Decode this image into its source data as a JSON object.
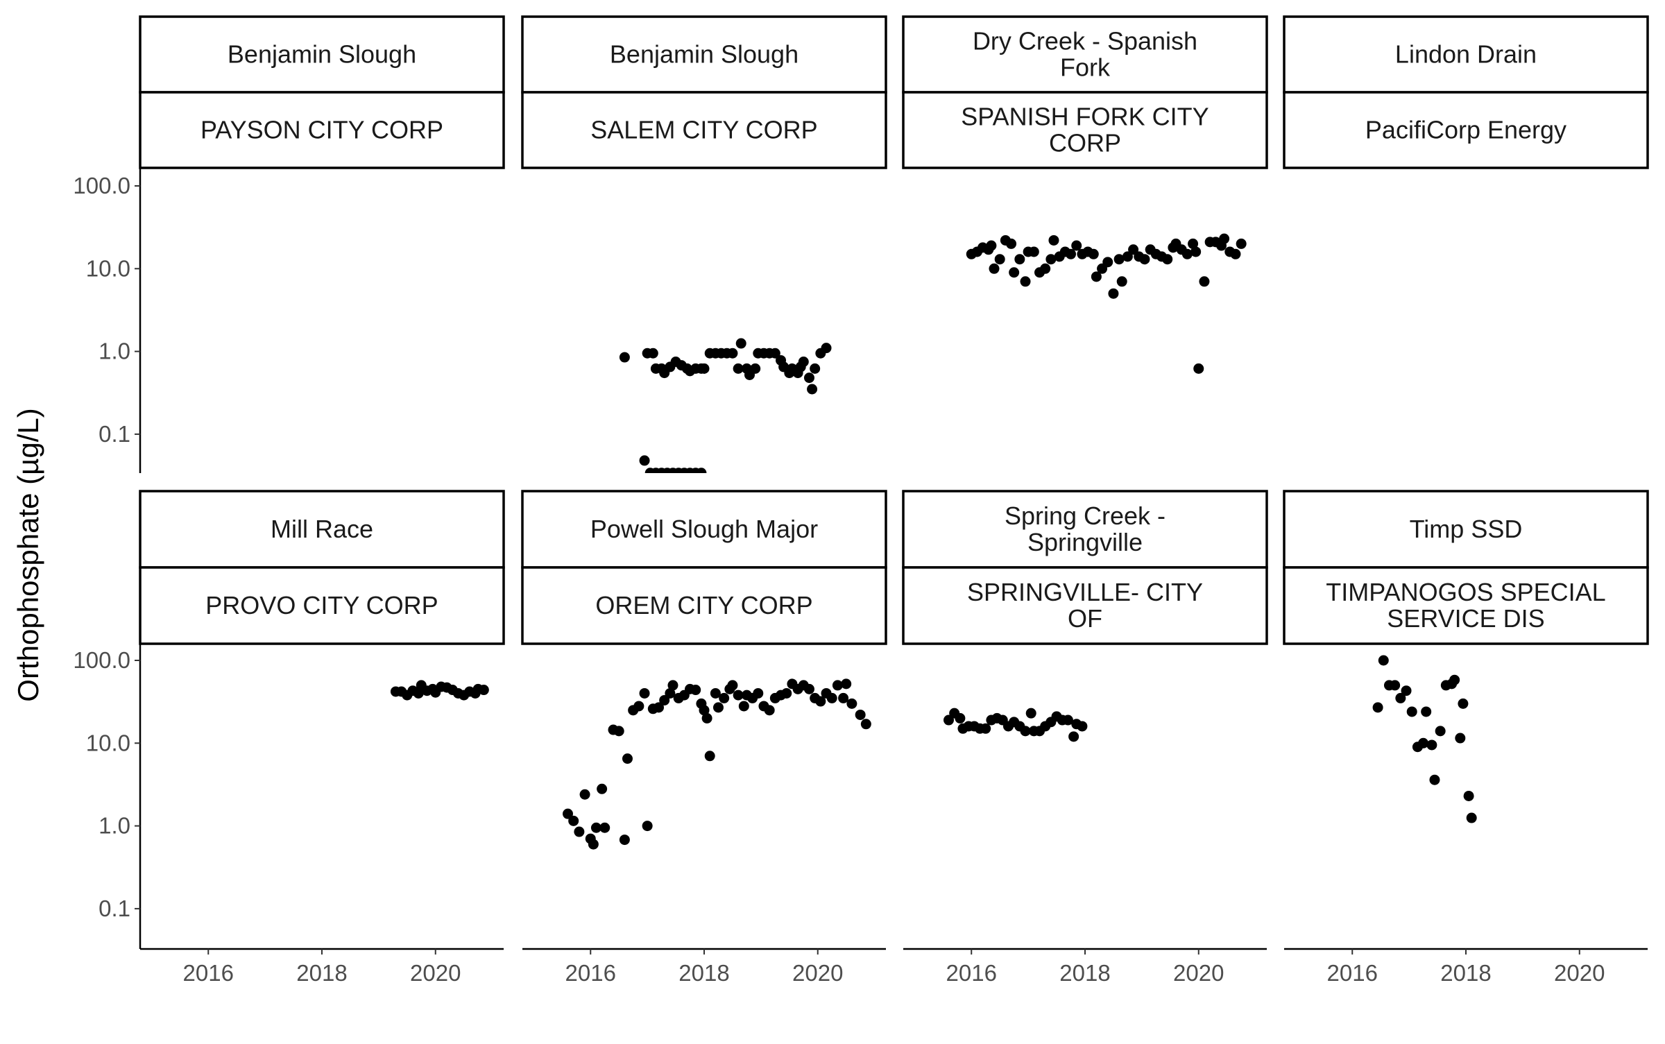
{
  "chart_data": {
    "type": "scatter",
    "ylabel": "Orthophosphate (µg/L)",
    "yscale": "log10",
    "ylim": [
      0.03,
      150
    ],
    "xlim": [
      2014.8,
      2021.2
    ],
    "yticks": [
      {
        "v": 100,
        "label": "100.0"
      },
      {
        "v": 10,
        "label": "10.0"
      },
      {
        "v": 1,
        "label": "1.0"
      },
      {
        "v": 0.1,
        "label": "0.1"
      }
    ],
    "xticks": [
      {
        "v": 2016,
        "label": "2016"
      },
      {
        "v": 2018,
        "label": "2018"
      },
      {
        "v": 2020,
        "label": "2020"
      }
    ],
    "grid": false,
    "panels": [
      {
        "site": [
          "Benjamin Slough"
        ],
        "owner": [
          "PAYSON CITY CORP"
        ],
        "points": []
      },
      {
        "site": [
          "Benjamin Slough"
        ],
        "owner": [
          "SALEM CITY CORP"
        ],
        "points": [
          [
            2016.6,
            0.85
          ],
          [
            2016.95,
            0.048
          ],
          [
            2017.0,
            0.95
          ],
          [
            2017.05,
            0.034
          ],
          [
            2017.1,
            0.95
          ],
          [
            2017.15,
            0.034
          ],
          [
            2017.15,
            0.62
          ],
          [
            2017.25,
            0.034
          ],
          [
            2017.25,
            0.62
          ],
          [
            2017.3,
            0.55
          ],
          [
            2017.35,
            0.034
          ],
          [
            2017.4,
            0.65
          ],
          [
            2017.45,
            0.034
          ],
          [
            2017.5,
            0.75
          ],
          [
            2017.55,
            0.034
          ],
          [
            2017.6,
            0.68
          ],
          [
            2017.65,
            0.034
          ],
          [
            2017.7,
            0.62
          ],
          [
            2017.75,
            0.034
          ],
          [
            2017.75,
            0.58
          ],
          [
            2017.85,
            0.62
          ],
          [
            2017.85,
            0.034
          ],
          [
            2017.95,
            0.62
          ],
          [
            2017.95,
            0.034
          ],
          [
            2018.0,
            0.62
          ],
          [
            2018.1,
            0.95
          ],
          [
            2018.2,
            0.95
          ],
          [
            2018.3,
            0.95
          ],
          [
            2018.4,
            0.95
          ],
          [
            2018.5,
            0.95
          ],
          [
            2018.6,
            0.62
          ],
          [
            2018.65,
            1.25
          ],
          [
            2018.75,
            0.62
          ],
          [
            2018.8,
            0.52
          ],
          [
            2018.9,
            0.62
          ],
          [
            2018.95,
            0.95
          ],
          [
            2019.05,
            0.95
          ],
          [
            2019.15,
            0.95
          ],
          [
            2019.25,
            0.95
          ],
          [
            2019.35,
            0.78
          ],
          [
            2019.4,
            0.65
          ],
          [
            2019.5,
            0.55
          ],
          [
            2019.55,
            0.62
          ],
          [
            2019.65,
            0.55
          ],
          [
            2019.7,
            0.65
          ],
          [
            2019.75,
            0.75
          ],
          [
            2019.85,
            0.48
          ],
          [
            2019.9,
            0.35
          ],
          [
            2019.95,
            0.62
          ],
          [
            2020.05,
            0.95
          ],
          [
            2020.15,
            1.1
          ]
        ]
      },
      {
        "site": [
          "Dry Creek - Spanish",
          "Fork"
        ],
        "owner": [
          "SPANISH FORK CITY",
          "CORP"
        ],
        "points": [
          [
            2016.0,
            15
          ],
          [
            2016.1,
            16
          ],
          [
            2016.2,
            18
          ],
          [
            2016.3,
            17
          ],
          [
            2016.35,
            19
          ],
          [
            2016.4,
            10
          ],
          [
            2016.5,
            13
          ],
          [
            2016.6,
            22
          ],
          [
            2016.7,
            20
          ],
          [
            2016.75,
            9
          ],
          [
            2016.85,
            13
          ],
          [
            2016.95,
            7
          ],
          [
            2017.0,
            16
          ],
          [
            2017.1,
            16
          ],
          [
            2017.2,
            9
          ],
          [
            2017.3,
            10
          ],
          [
            2017.4,
            13
          ],
          [
            2017.45,
            22
          ],
          [
            2017.55,
            14
          ],
          [
            2017.65,
            16
          ],
          [
            2017.75,
            15
          ],
          [
            2017.85,
            19
          ],
          [
            2017.95,
            15
          ],
          [
            2018.05,
            16
          ],
          [
            2018.15,
            15
          ],
          [
            2018.2,
            8
          ],
          [
            2018.3,
            10
          ],
          [
            2018.4,
            12
          ],
          [
            2018.5,
            5
          ],
          [
            2018.6,
            13
          ],
          [
            2018.65,
            7
          ],
          [
            2018.75,
            14
          ],
          [
            2018.85,
            17
          ],
          [
            2018.95,
            14
          ],
          [
            2019.05,
            13
          ],
          [
            2019.15,
            17
          ],
          [
            2019.25,
            15
          ],
          [
            2019.35,
            14
          ],
          [
            2019.45,
            13
          ],
          [
            2019.55,
            18
          ],
          [
            2019.6,
            20
          ],
          [
            2019.7,
            17
          ],
          [
            2019.8,
            15
          ],
          [
            2019.9,
            20
          ],
          [
            2019.95,
            16
          ],
          [
            2020.0,
            0.62
          ],
          [
            2020.1,
            7
          ],
          [
            2020.2,
            21
          ],
          [
            2020.3,
            21
          ],
          [
            2020.4,
            19
          ],
          [
            2020.45,
            23
          ],
          [
            2020.55,
            16
          ],
          [
            2020.65,
            15
          ],
          [
            2020.75,
            20
          ]
        ]
      },
      {
        "site": [
          "Lindon Drain"
        ],
        "owner": [
          "PacifiCorp Energy"
        ],
        "points": []
      },
      {
        "site": [
          "Mill Race"
        ],
        "owner": [
          "PROVO CITY CORP"
        ],
        "points": [
          [
            2019.3,
            42
          ],
          [
            2019.4,
            42
          ],
          [
            2019.5,
            38
          ],
          [
            2019.6,
            43
          ],
          [
            2019.7,
            40
          ],
          [
            2019.75,
            50
          ],
          [
            2019.85,
            43
          ],
          [
            2019.95,
            45
          ],
          [
            2020.0,
            41
          ],
          [
            2020.1,
            48
          ],
          [
            2020.2,
            47
          ],
          [
            2020.3,
            44
          ],
          [
            2020.4,
            40
          ],
          [
            2020.5,
            38
          ],
          [
            2020.6,
            42
          ],
          [
            2020.7,
            40
          ],
          [
            2020.75,
            45
          ],
          [
            2020.85,
            44
          ]
        ]
      },
      {
        "site": [
          "Powell Slough Major"
        ],
        "owner": [
          "OREM CITY CORP"
        ],
        "points": [
          [
            2015.6,
            1.4
          ],
          [
            2015.7,
            1.15
          ],
          [
            2015.8,
            0.85
          ],
          [
            2015.9,
            2.4
          ],
          [
            2016.0,
            0.7
          ],
          [
            2016.05,
            0.6
          ],
          [
            2016.1,
            0.95
          ],
          [
            2016.2,
            2.8
          ],
          [
            2016.25,
            0.95
          ],
          [
            2016.4,
            14.5
          ],
          [
            2016.5,
            14
          ],
          [
            2016.6,
            0.68
          ],
          [
            2016.65,
            6.5
          ],
          [
            2016.75,
            25
          ],
          [
            2016.85,
            28
          ],
          [
            2016.95,
            40
          ],
          [
            2017.0,
            1.0
          ],
          [
            2017.1,
            26
          ],
          [
            2017.2,
            27
          ],
          [
            2017.3,
            33
          ],
          [
            2017.4,
            40
          ],
          [
            2017.45,
            50
          ],
          [
            2017.55,
            35
          ],
          [
            2017.65,
            38
          ],
          [
            2017.75,
            45
          ],
          [
            2017.85,
            44
          ],
          [
            2017.95,
            30
          ],
          [
            2018.0,
            25
          ],
          [
            2018.05,
            20
          ],
          [
            2018.1,
            7
          ],
          [
            2018.2,
            40
          ],
          [
            2018.25,
            27
          ],
          [
            2018.35,
            35
          ],
          [
            2018.45,
            45
          ],
          [
            2018.5,
            50
          ],
          [
            2018.6,
            38
          ],
          [
            2018.7,
            28
          ],
          [
            2018.75,
            38
          ],
          [
            2018.85,
            35
          ],
          [
            2018.95,
            40
          ],
          [
            2019.05,
            28
          ],
          [
            2019.15,
            25
          ],
          [
            2019.25,
            35
          ],
          [
            2019.35,
            38
          ],
          [
            2019.45,
            40
          ],
          [
            2019.55,
            52
          ],
          [
            2019.65,
            45
          ],
          [
            2019.75,
            50
          ],
          [
            2019.85,
            45
          ],
          [
            2019.95,
            35
          ],
          [
            2020.05,
            32
          ],
          [
            2020.15,
            40
          ],
          [
            2020.25,
            35
          ],
          [
            2020.35,
            50
          ],
          [
            2020.45,
            35
          ],
          [
            2020.5,
            52
          ],
          [
            2020.6,
            30
          ],
          [
            2020.75,
            22
          ],
          [
            2020.85,
            17
          ]
        ]
      },
      {
        "site": [
          "Spring Creek -",
          "Springville"
        ],
        "owner": [
          "SPRINGVILLE- CITY",
          "OF"
        ],
        "points": [
          [
            2015.6,
            19
          ],
          [
            2015.7,
            23
          ],
          [
            2015.8,
            20
          ],
          [
            2015.85,
            15
          ],
          [
            2015.95,
            16
          ],
          [
            2016.05,
            16
          ],
          [
            2016.15,
            15
          ],
          [
            2016.25,
            15
          ],
          [
            2016.35,
            19
          ],
          [
            2016.45,
            20
          ],
          [
            2016.55,
            19
          ],
          [
            2016.65,
            16
          ],
          [
            2016.75,
            18
          ],
          [
            2016.85,
            16
          ],
          [
            2016.95,
            14
          ],
          [
            2017.05,
            23
          ],
          [
            2017.1,
            14
          ],
          [
            2017.2,
            14
          ],
          [
            2017.3,
            16
          ],
          [
            2017.4,
            18
          ],
          [
            2017.5,
            21
          ],
          [
            2017.6,
            19
          ],
          [
            2017.7,
            19
          ],
          [
            2017.8,
            12
          ],
          [
            2017.85,
            17
          ],
          [
            2017.95,
            16
          ]
        ]
      },
      {
        "site": [
          "Timp SSD"
        ],
        "owner": [
          "TIMPANOGOS SPECIAL",
          "SERVICE DIS"
        ],
        "points": [
          [
            2016.45,
            27
          ],
          [
            2016.55,
            100
          ],
          [
            2016.65,
            50
          ],
          [
            2016.75,
            50
          ],
          [
            2016.85,
            35
          ],
          [
            2016.95,
            43
          ],
          [
            2017.05,
            24
          ],
          [
            2017.15,
            9
          ],
          [
            2017.25,
            10
          ],
          [
            2017.3,
            24
          ],
          [
            2017.4,
            9.5
          ],
          [
            2017.45,
            3.6
          ],
          [
            2017.55,
            14
          ],
          [
            2017.65,
            50
          ],
          [
            2017.75,
            52
          ],
          [
            2017.8,
            58
          ],
          [
            2017.9,
            11.5
          ],
          [
            2017.95,
            30
          ],
          [
            2018.05,
            2.3
          ],
          [
            2018.1,
            1.25
          ]
        ]
      }
    ]
  }
}
